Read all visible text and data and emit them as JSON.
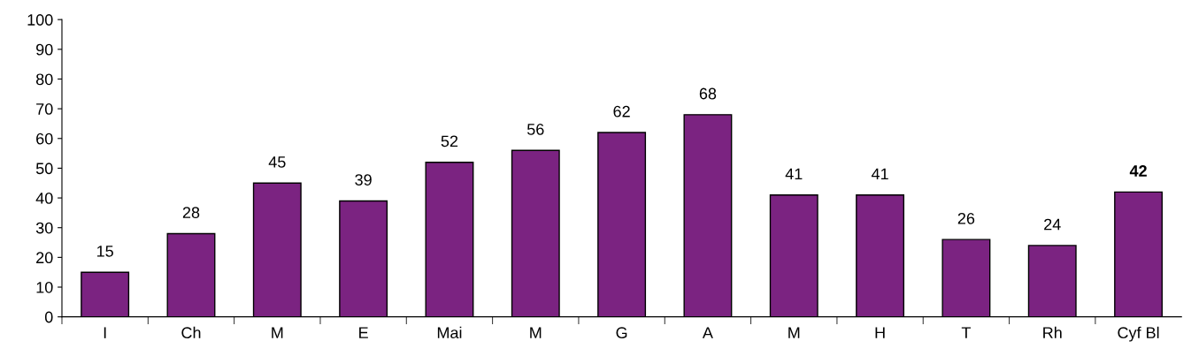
{
  "chart_data": {
    "type": "bar",
    "categories": [
      "I",
      "Ch",
      "M",
      "E",
      "Mai",
      "M",
      "G",
      "A",
      "M",
      "H",
      "T",
      "Rh",
      "Cyf Bl"
    ],
    "values": [
      15,
      28,
      45,
      39,
      52,
      56,
      62,
      68,
      41,
      41,
      26,
      24,
      42
    ],
    "color": "#7b2381",
    "ylim": [
      0,
      100
    ],
    "yticks": [
      0,
      10,
      20,
      30,
      40,
      50,
      60,
      70,
      80,
      90,
      100
    ],
    "data_labels": true,
    "grid": false,
    "legend": false
  }
}
